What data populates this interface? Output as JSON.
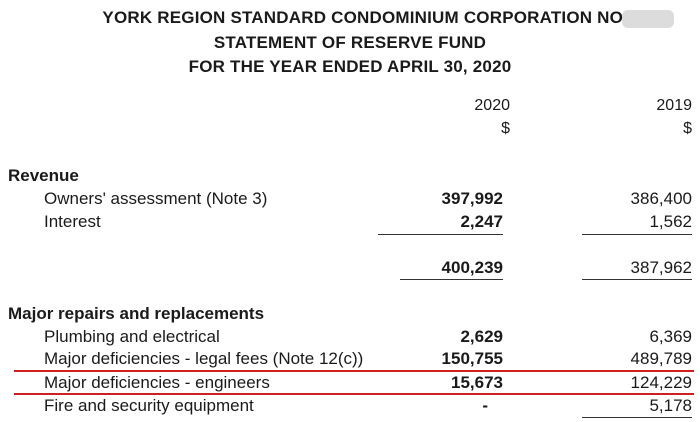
{
  "header": {
    "line1": "YORK REGION STANDARD CONDOMINIUM CORPORATION NO.",
    "line2": "STATEMENT OF RESERVE FUND",
    "line3": "FOR THE YEAR ENDED APRIL 30, 2020"
  },
  "columns": {
    "y2020": "2020",
    "y2019": "2019",
    "currency2020": "$",
    "currency2019": "$"
  },
  "revenue": {
    "title": "Revenue",
    "rows": [
      {
        "label": "Owners' assessment (Note 3)",
        "v2020": "397,992",
        "v2019": "386,400"
      },
      {
        "label": "Interest",
        "v2020": "2,247",
        "v2019": "1,562"
      }
    ],
    "total2020": "400,239",
    "total2019": "387,962"
  },
  "repairs": {
    "title": "Major repairs and replacements",
    "rows": [
      {
        "label": "Plumbing and electrical",
        "v2020": "2,629",
        "v2019": "6,369"
      },
      {
        "label": "Major deficiencies - legal fees (Note 12(c))",
        "v2020": "150,755",
        "v2019": "489,789"
      },
      {
        "label": "Major deficiencies - engineers",
        "v2020": "15,673",
        "v2019": "124,229"
      },
      {
        "label": "Fire and security equipment",
        "v2020": "-",
        "v2019": "5,178"
      }
    ]
  },
  "colors": {
    "highlight": "#cf1f1f"
  }
}
